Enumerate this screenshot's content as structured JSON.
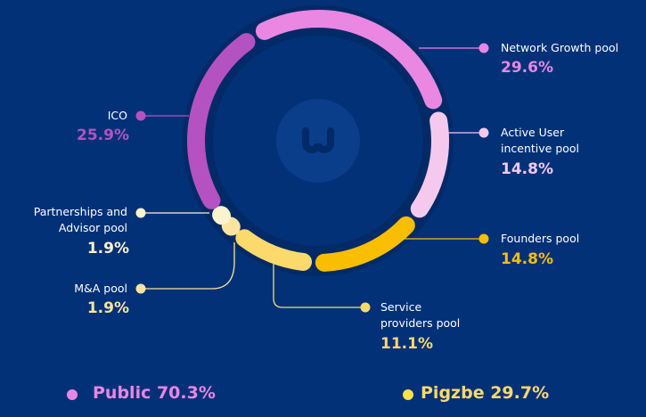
{
  "chart_data": {
    "type": "pie",
    "variant": "donut",
    "slices": [
      {
        "label": "Network Growth pool",
        "value": 29.6,
        "display": "29.6%",
        "color": "#e987e2",
        "group": "Public"
      },
      {
        "label": "Active User incentive pool",
        "value": 14.8,
        "display": "14.8%",
        "color": "#f5c9ee",
        "group": "Public"
      },
      {
        "label": "Founders pool",
        "value": 14.8,
        "display": "14.8%",
        "color": "#f9be00",
        "group": "Pigzbe"
      },
      {
        "label": "Service providers pool",
        "value": 11.1,
        "display": "11.1%",
        "color": "#fbd96b",
        "group": "Pigzbe"
      },
      {
        "label": "M&A pool",
        "value": 1.9,
        "display": "1.9%",
        "color": "#fbe49d",
        "group": "Pigzbe"
      },
      {
        "label": "Partnerships and Advisor pool",
        "value": 1.9,
        "display": "1.9%",
        "color": "#fdf2d0",
        "group": "Pigzbe"
      },
      {
        "label": "ICO",
        "value": 25.9,
        "display": "25.9%",
        "color": "#b452c2",
        "group": "Public"
      }
    ],
    "legend": [
      {
        "label": "Public 70.3%",
        "color": "#e987e2"
      },
      {
        "label": "Pigzbe 29.7%",
        "color": "#fbd96b"
      }
    ],
    "legend_placement": "bottom"
  },
  "labels": {
    "network_1": "Network Growth pool",
    "active_1": "Active User",
    "active_2": "incentive pool",
    "founders_1": "Founders pool",
    "service_1": "Service",
    "service_2": "providers pool",
    "ma_1": "M&A pool",
    "partners_1": "Partnerships and",
    "partners_2": "Advisor pool",
    "ico_1": "ICO"
  },
  "logo_text": "W"
}
